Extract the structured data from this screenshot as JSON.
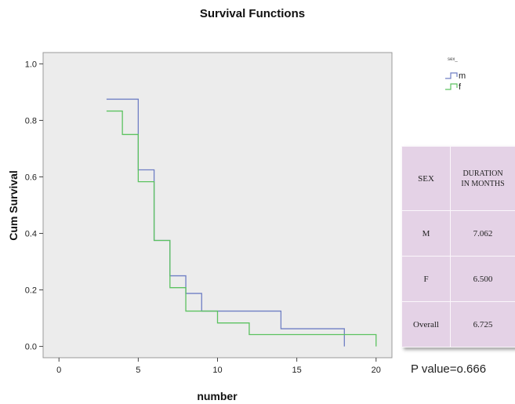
{
  "chart_data": {
    "type": "line",
    "title": "Survival Functions",
    "xlabel": "number",
    "ylabel": "Cum Survival",
    "xlim": [
      -1,
      21
    ],
    "ylim": [
      -0.04,
      1.04
    ],
    "xticks": [
      0,
      5,
      10,
      15,
      20
    ],
    "yticks": [
      0.0,
      0.2,
      0.4,
      0.6,
      0.8,
      1.0
    ],
    "xtick_labels": [
      "0",
      "5",
      "10",
      "15",
      "20"
    ],
    "ytick_labels": [
      "0.0",
      "0.2",
      "0.4",
      "0.6",
      "0.8",
      "1.0"
    ],
    "step": true,
    "legend": {
      "title": "sex_",
      "placement": "right, outside plot area",
      "entries": [
        "m",
        "f"
      ]
    },
    "series": [
      {
        "name": "m",
        "color": "#6f7fc4",
        "x": [
          3,
          5,
          6,
          7,
          8,
          9,
          14,
          18
        ],
        "y": [
          0.875,
          0.625,
          0.375,
          0.25,
          0.1875,
          0.125,
          0.0625,
          0.0
        ]
      },
      {
        "name": "f",
        "color": "#5cc260",
        "x": [
          3,
          4,
          5,
          6,
          7,
          8,
          10,
          12,
          20
        ],
        "y": [
          0.833,
          0.75,
          0.583,
          0.375,
          0.208,
          0.125,
          0.083,
          0.042,
          0.0
        ]
      }
    ]
  },
  "table": {
    "headers": [
      "SEX",
      "DURATION",
      "IN MONTHS"
    ],
    "rows": [
      {
        "sex": "M",
        "duration": "7.062"
      },
      {
        "sex": "F",
        "duration": "6.500"
      },
      {
        "sex": "Overall",
        "duration": "6.725"
      }
    ]
  },
  "pvalue_text": "P value=o.666",
  "colors": {
    "plot_background": "#ececec",
    "table_background": "#e4d2e6"
  }
}
